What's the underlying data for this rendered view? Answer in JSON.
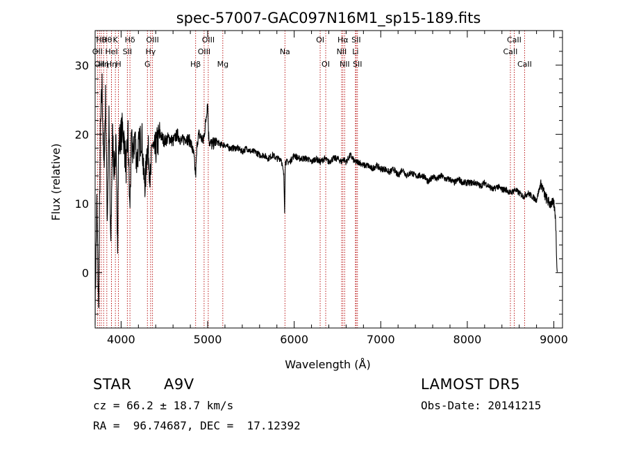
{
  "chart_data": {
    "type": "line",
    "title": "spec-57007-GAC097N16M1_sp15-189.fits",
    "xlabel": "Wavelength (Å)",
    "ylabel": "Flux (relative)",
    "xlim": [
      3700,
      9100
    ],
    "ylim": [
      -8,
      35
    ],
    "xticks": [
      4000,
      5000,
      6000,
      7000,
      8000,
      9000
    ],
    "yticks": [
      0,
      10,
      20,
      30
    ],
    "grid": false,
    "line_color": "#000000",
    "marker_color": "#b40000",
    "series": [
      {
        "x": [
          3700,
          3720,
          3740,
          3760,
          3780,
          3800,
          3820,
          3840,
          3860,
          3880,
          3900,
          3920,
          3940,
          3960,
          3970,
          3980,
          4000,
          4020,
          4040,
          4060,
          4080,
          4100,
          4120,
          4140,
          4160,
          4180,
          4200,
          4220,
          4240,
          4260,
          4280,
          4300,
          4320,
          4340,
          4360,
          4380,
          4400,
          4450,
          4500,
          4550,
          4600,
          4650,
          4700,
          4750,
          4800,
          4840,
          4861,
          4880,
          4900,
          4950,
          4980,
          5000,
          5010,
          5020,
          5050,
          5100,
          5150,
          5200,
          5250,
          5300,
          5350,
          5400,
          5450,
          5500,
          5550,
          5600,
          5650,
          5700,
          5750,
          5800,
          5850,
          5880,
          5890,
          5896,
          5910,
          5950,
          6000,
          6050,
          6100,
          6150,
          6200,
          6250,
          6300,
          6350,
          6400,
          6450,
          6500,
          6550,
          6563,
          6600,
          6650,
          6700,
          6750,
          6800,
          6850,
          6900,
          6950,
          7000,
          7050,
          7100,
          7150,
          7200,
          7250,
          7300,
          7350,
          7400,
          7450,
          7500,
          7550,
          7600,
          7650,
          7700,
          7750,
          7800,
          7850,
          7900,
          7950,
          8000,
          8050,
          8100,
          8150,
          8200,
          8250,
          8300,
          8350,
          8400,
          8450,
          8500,
          8550,
          8600,
          8650,
          8700,
          8750,
          8800,
          8850,
          8900,
          8950,
          9000,
          9020,
          9030,
          9040
        ],
        "y": [
          -5,
          10,
          -6,
          20,
          27,
          15,
          25,
          8,
          22,
          3,
          20,
          15,
          18,
          5,
          17,
          19,
          20,
          21,
          18,
          15,
          20,
          9,
          19,
          17,
          20,
          16,
          18,
          19,
          20,
          14,
          13,
          18,
          17,
          13,
          19,
          17,
          18,
          20,
          19,
          19.5,
          19,
          20,
          19,
          19.5,
          19,
          17,
          14,
          19,
          20,
          19,
          22,
          25,
          20,
          19,
          18.5,
          19,
          18.5,
          18.5,
          18,
          18,
          18,
          17.5,
          18,
          17.5,
          17.5,
          17,
          17,
          16.5,
          17,
          16.5,
          16.5,
          14,
          9,
          16,
          16,
          16,
          17,
          16.5,
          16.5,
          16.5,
          16,
          16.5,
          16,
          16.5,
          16,
          16.5,
          16.5,
          16,
          16.5,
          16,
          17,
          16,
          16,
          15.5,
          15.5,
          15,
          15.5,
          15,
          15,
          14.5,
          15,
          14,
          15,
          14,
          14.5,
          14,
          14,
          14,
          13,
          14,
          13.5,
          14,
          13.5,
          13.5,
          13,
          13.5,
          13,
          13,
          13,
          13,
          12.5,
          13,
          12.5,
          12,
          12.5,
          12,
          12,
          11.5,
          12,
          11.5,
          11,
          11.5,
          11,
          10.5,
          13,
          11,
          10,
          10,
          8,
          3,
          0
        ]
      }
    ],
    "lines": [
      {
        "x": 3727,
        "row": 2,
        "label": "OII"
      },
      {
        "x": 3750,
        "row": 3,
        "label": "OII"
      },
      {
        "x": 3771,
        "row": 1,
        "label": "Hθ"
      },
      {
        "x": 3798,
        "row": 3,
        "label": "Hη"
      },
      {
        "x": 3835,
        "row": 1,
        "label": "Hθ"
      },
      {
        "x": 3889,
        "row": 3,
        "label": "Hη"
      },
      {
        "x": 3889,
        "row": 2,
        "label": "HeI"
      },
      {
        "x": 3934,
        "row": 1,
        "label": "K"
      },
      {
        "x": 3969,
        "row": 3,
        "label": "H"
      },
      {
        "x": 4072,
        "row": 2,
        "label": "SII"
      },
      {
        "x": 4102,
        "row": 1,
        "label": "Hδ"
      },
      {
        "x": 4304,
        "row": 3,
        "label": "G"
      },
      {
        "x": 4341,
        "row": 2,
        "label": "Hγ"
      },
      {
        "x": 4363,
        "row": 1,
        "label": "OIII"
      },
      {
        "x": 4861,
        "row": 3,
        "label": "Hβ"
      },
      {
        "x": 4959,
        "row": 2,
        "label": "OIII"
      },
      {
        "x": 5007,
        "row": 1,
        "label": "OIII"
      },
      {
        "x": 5175,
        "row": 3,
        "label": "Mg"
      },
      {
        "x": 5893,
        "row": 2,
        "label": "Na"
      },
      {
        "x": 6300,
        "row": 1,
        "label": "OI"
      },
      {
        "x": 6364,
        "row": 3,
        "label": "OI"
      },
      {
        "x": 6548,
        "row": 2,
        "label": "NII"
      },
      {
        "x": 6563,
        "row": 1,
        "label": "Hα"
      },
      {
        "x": 6583,
        "row": 3,
        "label": "NII"
      },
      {
        "x": 6708,
        "row": 2,
        "label": "Li"
      },
      {
        "x": 6716,
        "row": 1,
        "label": "SII"
      },
      {
        "x": 6731,
        "row": 3,
        "label": "SII"
      },
      {
        "x": 8498,
        "row": 2,
        "label": "CaII"
      },
      {
        "x": 8542,
        "row": 1,
        "label": "CaII"
      },
      {
        "x": 8662,
        "row": 3,
        "label": "CaII"
      }
    ]
  },
  "info": {
    "object_class": "STAR",
    "subclass": "A9V",
    "survey": "LAMOST DR5",
    "redshift": "cz = 66.2 ± 18.7 km/s",
    "obs_date": "Obs-Date: 20141215",
    "coords": "RA =  96.74687, DEC =  17.12392"
  }
}
